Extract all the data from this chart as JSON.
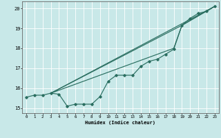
{
  "xlabel": "Humidex (Indice chaleur)",
  "bg_color": "#c8e8e8",
  "line_color": "#2a6e60",
  "grid_color": "#ffffff",
  "xlim": [
    -0.5,
    23.5
  ],
  "ylim": [
    14.75,
    20.35
  ],
  "xticks": [
    0,
    1,
    2,
    3,
    4,
    5,
    6,
    7,
    8,
    9,
    10,
    11,
    12,
    13,
    14,
    15,
    16,
    17,
    18,
    19,
    20,
    21,
    22,
    23
  ],
  "yticks": [
    15,
    16,
    17,
    18,
    19,
    20
  ],
  "main_x": [
    0,
    1,
    2,
    3,
    4,
    5,
    6,
    7,
    8,
    9,
    10,
    11,
    12,
    13,
    14,
    15,
    16,
    17,
    18,
    19,
    20,
    21,
    22,
    23
  ],
  "main_y": [
    15.55,
    15.65,
    15.65,
    15.75,
    15.7,
    15.1,
    15.2,
    15.2,
    15.2,
    15.58,
    16.35,
    16.65,
    16.65,
    16.65,
    17.1,
    17.35,
    17.45,
    17.7,
    17.95,
    19.15,
    19.5,
    19.75,
    19.85,
    20.1
  ],
  "line2_x": [
    3,
    23
  ],
  "line2_y": [
    15.75,
    20.1
  ],
  "line3_x": [
    3,
    19,
    23
  ],
  "line3_y": [
    15.75,
    19.15,
    20.1
  ],
  "line4_x": [
    3,
    18,
    19,
    23
  ],
  "line4_y": [
    15.75,
    18.0,
    19.15,
    20.1
  ]
}
